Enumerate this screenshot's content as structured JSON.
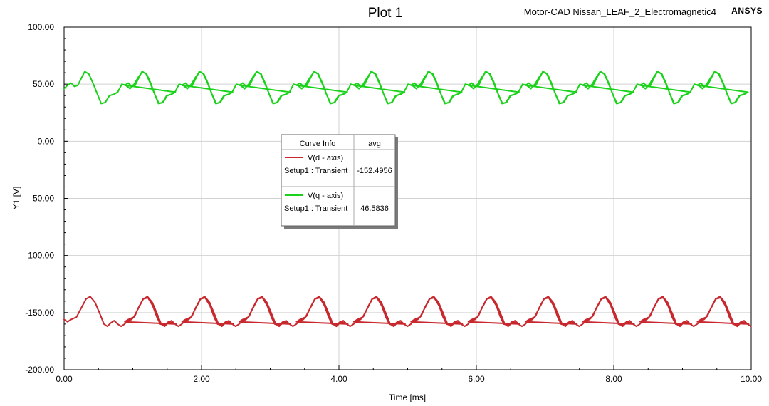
{
  "chart_data": {
    "type": "line",
    "title": "Plot 1",
    "project_label": "Motor-CAD Nissan_LEAF_2_Electromagnetic4",
    "brand": "ANSYS",
    "xlabel": "Time [ms]",
    "ylabel": "Y1 [V]",
    "xlim": [
      0,
      10
    ],
    "ylim": [
      -200,
      100
    ],
    "x_ticks": [
      "0.00",
      "2.00",
      "4.00",
      "6.00",
      "8.00",
      "10.00"
    ],
    "y_ticks": [
      "100.00",
      "50.00",
      "0.00",
      "-50.00",
      "-100.00",
      "-150.00",
      "-200.00"
    ],
    "legend": {
      "header_name": "Curve Info",
      "header_stat": "avg",
      "entries": [
        {
          "name": "V(d - axis)",
          "setup": "Setup1 : Transient",
          "avg": "-152.4956",
          "color": "#c8282d"
        },
        {
          "name": "V(q - axis)",
          "setup": "Setup1 : Transient",
          "avg": "46.5836",
          "color": "#19d219"
        }
      ]
    },
    "series": [
      {
        "name": "V(d - axis)",
        "color": "#c8282d",
        "period_ms": 0.8333,
        "x": [
          0.0,
          0.05,
          0.1,
          0.18,
          0.25,
          0.32,
          0.38,
          0.45,
          0.52,
          0.58,
          0.63,
          0.68,
          0.73,
          0.78,
          0.83,
          0.88,
          0.93,
          0.98,
          1.03,
          1.08,
          1.15,
          1.22,
          1.29,
          1.35,
          1.4,
          1.46,
          1.52,
          1.58,
          1.63
        ],
        "y": [
          -156,
          -158,
          -156,
          -154,
          -146,
          -138,
          -136,
          -141,
          -151,
          -160,
          -162,
          -159,
          -157,
          -160,
          -162,
          -160,
          -157,
          -156,
          -153,
          -146,
          -138,
          -137,
          -144,
          -154,
          -160,
          -161,
          -158,
          -159,
          -160
        ]
      },
      {
        "name": "V(q - axis)",
        "color": "#19d219",
        "period_ms": 0.8333,
        "x": [
          0.0,
          0.05,
          0.1,
          0.15,
          0.2,
          0.25,
          0.3,
          0.36,
          0.42,
          0.48,
          0.54,
          0.6,
          0.66,
          0.72,
          0.78,
          0.84,
          0.9,
          0.96,
          1.02,
          1.08,
          1.14,
          1.2,
          1.26,
          1.32,
          1.38,
          1.44,
          1.5,
          1.56,
          1.62
        ],
        "y": [
          46,
          49,
          51,
          48,
          49,
          55,
          61,
          59,
          51,
          42,
          33,
          34,
          40,
          41,
          43,
          50,
          49,
          46,
          50,
          56,
          61,
          59,
          51,
          41,
          33,
          34,
          40,
          41,
          43
        ]
      }
    ]
  }
}
